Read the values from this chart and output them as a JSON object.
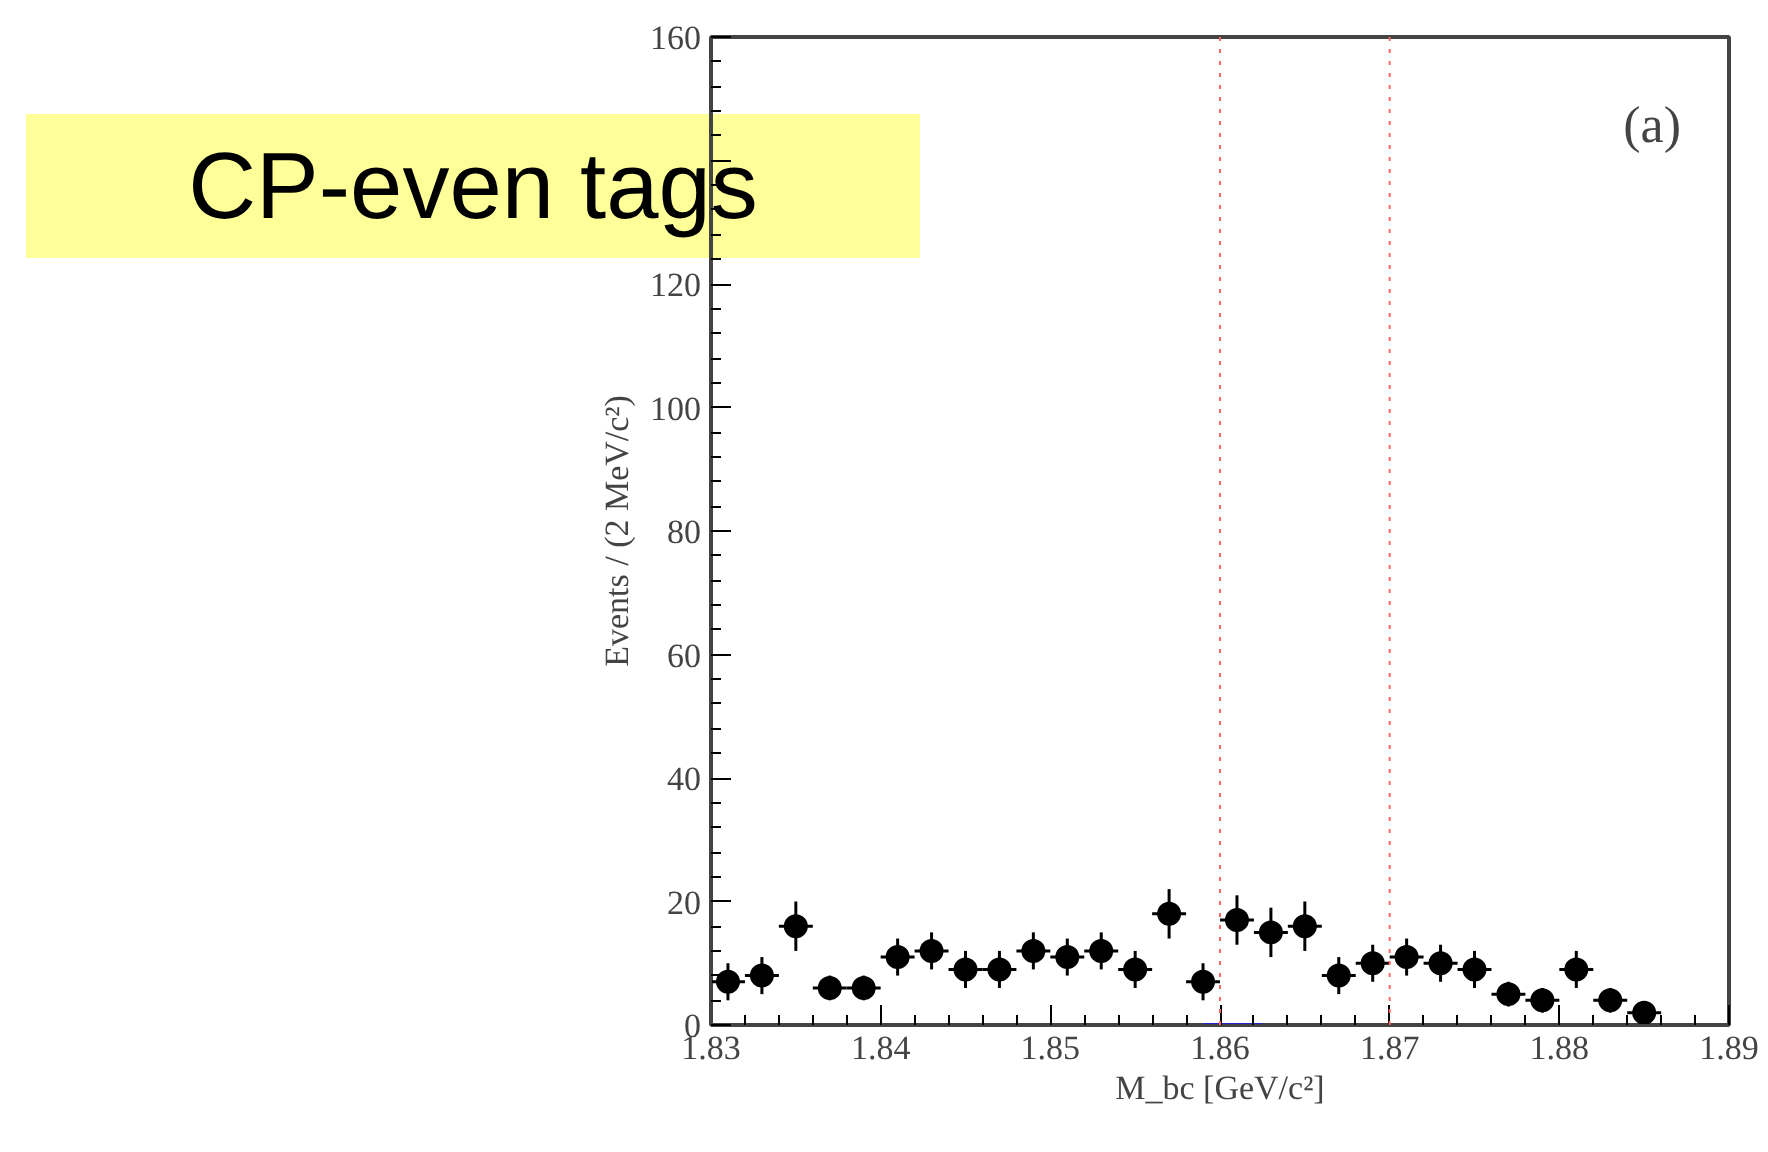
{
  "chart_data": {
    "type": "scatter",
    "xlabel": "M_bc [GeV/c²]",
    "ylabel": "Events / (2 MeV/c²)",
    "annotations": [
      "CP-even tags",
      "(a)"
    ],
    "xlim": [
      1.83,
      1.89
    ],
    "xticks": [
      {
        "value": 1.83,
        "label": "1.83"
      },
      {
        "value": 1.84,
        "label": "1.84"
      },
      {
        "value": 1.85,
        "label": "1.85"
      },
      {
        "value": 1.86,
        "label": "1.86"
      },
      {
        "value": 1.87,
        "label": "1.87"
      },
      {
        "value": 1.88,
        "label": "1.88"
      },
      {
        "value": 1.89,
        "label": "1.89"
      }
    ],
    "ylim": [
      0,
      160
    ],
    "yticks": [
      0,
      20,
      40,
      60,
      80,
      100,
      120,
      {
        "value": 140,
        "label": null
      },
      160
    ],
    "grid": false,
    "marker": "circle",
    "ref_lines": [
      {
        "axis": "x",
        "value": 1.86,
        "label": null,
        "color": "#ff6666",
        "line_style": "dotted"
      },
      {
        "axis": "x",
        "value": 1.87,
        "label": null,
        "color": "#ff6666",
        "line_style": "dotted"
      }
    ],
    "series": [
      {
        "color": "#000000",
        "x": [
          1.831,
          1.833,
          1.835,
          1.837,
          1.839,
          1.841,
          1.843,
          1.845,
          1.847,
          1.849,
          1.851,
          1.853,
          1.855,
          1.857,
          1.859,
          1.861,
          1.863,
          1.865,
          1.867,
          1.869,
          1.871,
          1.873,
          1.875,
          1.877,
          1.879,
          1.881,
          1.883,
          1.885
        ],
        "values": [
          7,
          8,
          16,
          6,
          6,
          11,
          12,
          9,
          9,
          12,
          11,
          12,
          9,
          18,
          7,
          17,
          15,
          16,
          8,
          10,
          11,
          10,
          9,
          5,
          4,
          9,
          4,
          2
        ],
        "errors": [
          3,
          3,
          4,
          2,
          2,
          3,
          3,
          3,
          3,
          3,
          3,
          3,
          3,
          4,
          3,
          4,
          4,
          4,
          3,
          3,
          3,
          3,
          3,
          2,
          2,
          3,
          2,
          1
        ],
        "xerrors": [
          0.001,
          0.001,
          0.001,
          0.001,
          0.001,
          0.001,
          0.001,
          0.001,
          0.001,
          0.001,
          0.001,
          0.001,
          0.001,
          0.001,
          0.001,
          0.001,
          0.001,
          0.001,
          0.001,
          0.001,
          0.001,
          0.001,
          0.001,
          0.001,
          0.001,
          0.001,
          0.001,
          0.001
        ]
      },
      {
        "type": "line",
        "marker": "none",
        "color": "#2222cc",
        "x": [
          1.859,
          1.8625
        ],
        "values": [
          0,
          0
        ]
      }
    ]
  }
}
